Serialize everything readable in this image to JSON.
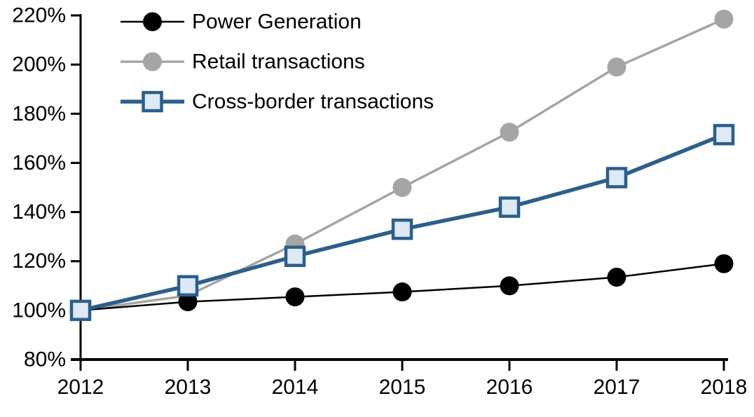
{
  "chart_data": {
    "type": "line",
    "title": "",
    "xlabel": "",
    "ylabel": "",
    "background": "#ffffff",
    "grid": false,
    "legend_position": "top-left-inside",
    "x": [
      2012,
      2013,
      2014,
      2015,
      2016,
      2017,
      2018
    ],
    "xticklabels": [
      "2012",
      "2013",
      "2014",
      "2015",
      "2016",
      "2017",
      "2018"
    ],
    "ylim": [
      80,
      220
    ],
    "yticks": [
      80,
      100,
      120,
      140,
      160,
      180,
      200,
      220
    ],
    "yticklabels": [
      "80%",
      "100%",
      "120%",
      "140%",
      "160%",
      "180%",
      "200%",
      "220%"
    ],
    "axis_color": "#000000",
    "series": [
      {
        "name": "Power Generation",
        "marker": "circle",
        "color": "#000000",
        "marker_fill": "#000000",
        "line_width": 2.5,
        "z": 1,
        "values": [
          100,
          103.5,
          105.5,
          107.5,
          110,
          113.5,
          119
        ]
      },
      {
        "name": "Retail transactions",
        "marker": "circle",
        "color": "#a5a5a5",
        "marker_fill": "#a5a5a5",
        "line_width": 3.5,
        "z": 0,
        "values": [
          100,
          106,
          127,
          150,
          172.5,
          199,
          218.5
        ]
      },
      {
        "name": "Cross-border transactions",
        "marker": "square",
        "color": "#2b5f8c",
        "marker_fill": "#dde9f5",
        "line_width": 5.5,
        "z": 2,
        "values": [
          100,
          110,
          122,
          133,
          142,
          154,
          171.5
        ]
      }
    ]
  }
}
